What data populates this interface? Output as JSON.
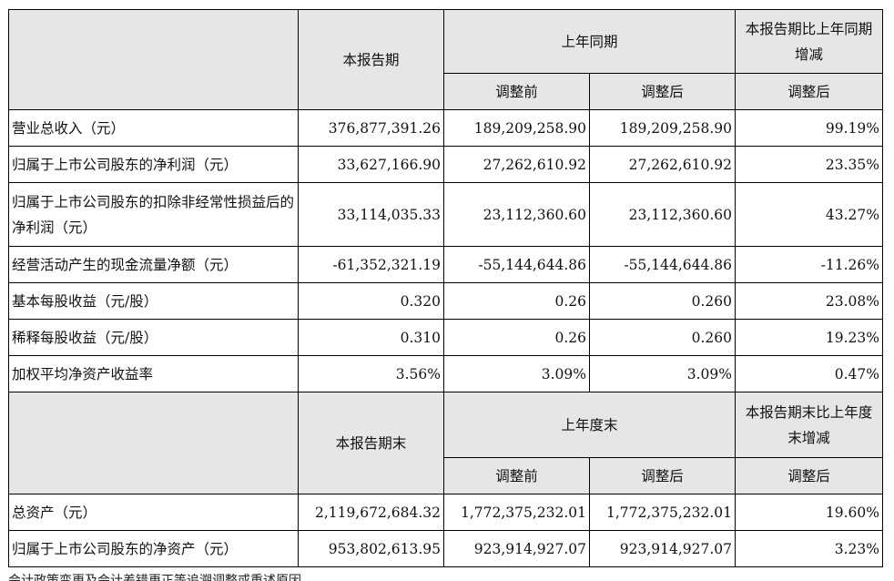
{
  "headers1": {
    "current": "本报告期",
    "prior_group": "上年同期",
    "change_group": "本报告期比上年同期增减",
    "before": "调整前",
    "after": "调整后",
    "after_change": "调整后"
  },
  "headers2": {
    "current": "本报告期末",
    "prior_group": "上年度末",
    "change_group": "本报告期末比上年度末增减",
    "before": "调整前",
    "after": "调整后",
    "after_change": "调整后"
  },
  "rows1": [
    {
      "label": "营业总收入（元）",
      "current": "376,877,391.26",
      "before": "189,209,258.90",
      "after": "189,209,258.90",
      "change": "99.19%"
    },
    {
      "label": "归属于上市公司股东的净利润（元）",
      "current": "33,627,166.90",
      "before": "27,262,610.92",
      "after": "27,262,610.92",
      "change": "23.35%"
    },
    {
      "label": "归属于上市公司股东的扣除非经常性损益后的净利润（元）",
      "current": "33,114,035.33",
      "before": "23,112,360.60",
      "after": "23,112,360.60",
      "change": "43.27%"
    },
    {
      "label": "经营活动产生的现金流量净额（元）",
      "current": "-61,352,321.19",
      "before": "-55,144,644.86",
      "after": "-55,144,644.86",
      "change": "-11.26%"
    },
    {
      "label": "基本每股收益（元/股）",
      "current": "0.320",
      "before": "0.26",
      "after": "0.260",
      "change": "23.08%"
    },
    {
      "label": "稀释每股收益（元/股）",
      "current": "0.310",
      "before": "0.26",
      "after": "0.260",
      "change": "19.23%"
    },
    {
      "label": "加权平均净资产收益率",
      "current": "3.56%",
      "before": "3.09%",
      "after": "3.09%",
      "change": "0.47%"
    }
  ],
  "rows2": [
    {
      "label": "总资产（元）",
      "current": "2,119,672,684.32",
      "before": "1,772,375,232.01",
      "after": "1,772,375,232.01",
      "change": "19.60%"
    },
    {
      "label": "归属于上市公司股东的净资产（元）",
      "current": "953,802,613.95",
      "before": "923,914,927.07",
      "after": "923,914,927.07",
      "change": "3.23%"
    }
  ],
  "footnote": "会计政策变更及会计差错更正等追溯调整或重述原因"
}
